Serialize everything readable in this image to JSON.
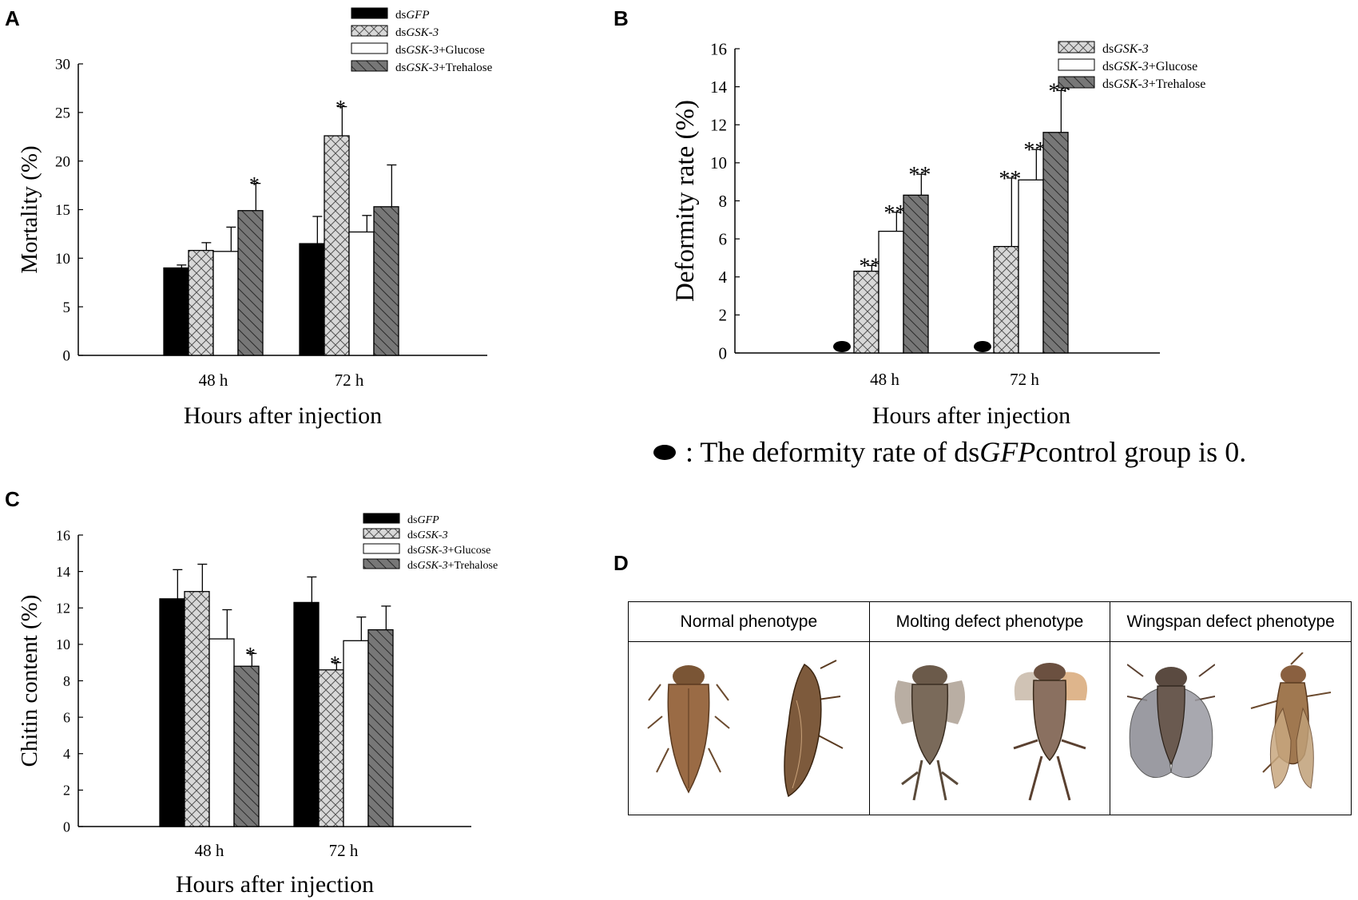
{
  "panels": {
    "A": "A",
    "B": "B",
    "C": "C",
    "D": "D"
  },
  "chart_data": [
    {
      "id": "A",
      "type": "bar",
      "ylabel": "Mortality (%)",
      "xlabel": "Hours after injection",
      "categories": [
        "48 h",
        "72 h"
      ],
      "ylim": [
        0,
        30
      ],
      "yticks": [
        "0",
        "5",
        "10",
        "15",
        "20",
        "25",
        "30"
      ],
      "series": [
        {
          "name": "dsGFP",
          "prefix": "ds",
          "italic": "GFP",
          "suffix": "",
          "pattern": "solid",
          "values": [
            9.0,
            11.5
          ],
          "errors": [
            0.3,
            2.8
          ],
          "sig": [
            "",
            ""
          ]
        },
        {
          "name": "dsGSK-3",
          "prefix": "ds",
          "italic": "GSK-3",
          "suffix": "",
          "pattern": "cross",
          "values": [
            10.8,
            22.6
          ],
          "errors": [
            0.8,
            3.0
          ],
          "sig": [
            "",
            "*"
          ]
        },
        {
          "name": "dsGSK-3+Glucose",
          "prefix": "ds",
          "italic": "GSK-3",
          "suffix": "+Glucose",
          "pattern": "white",
          "values": [
            10.7,
            12.7
          ],
          "errors": [
            2.5,
            1.7
          ],
          "sig": [
            "",
            ""
          ]
        },
        {
          "name": "dsGSK-3+Trehalose",
          "prefix": "ds",
          "italic": "GSK-3",
          "suffix": "+Trehalose",
          "pattern": "diag",
          "values": [
            14.9,
            15.3
          ],
          "errors": [
            2.8,
            4.3
          ],
          "sig": [
            "*",
            ""
          ]
        }
      ]
    },
    {
      "id": "B",
      "type": "bar",
      "ylabel": "Deformity rate (%)",
      "xlabel": "Hours after injection",
      "categories": [
        "48 h",
        "72 h"
      ],
      "ylim": [
        0,
        16
      ],
      "yticks": [
        "0",
        "2",
        "4",
        "6",
        "8",
        "10",
        "12",
        "14",
        "16"
      ],
      "series": [
        {
          "name": "dsGSK-3",
          "prefix": "ds",
          "italic": "GSK-3",
          "suffix": "",
          "pattern": "cross",
          "values": [
            4.3,
            5.6
          ],
          "errors": [
            0.3,
            3.6
          ],
          "sig": [
            "**",
            "**"
          ]
        },
        {
          "name": "dsGSK-3+Glucose",
          "prefix": "ds",
          "italic": "GSK-3",
          "suffix": "+Glucose",
          "pattern": "white",
          "values": [
            6.4,
            9.1
          ],
          "errors": [
            1.0,
            1.6
          ],
          "sig": [
            "**",
            "**"
          ]
        },
        {
          "name": "dsGSK-3+Trehalose",
          "prefix": "ds",
          "italic": "GSK-3",
          "suffix": "+Trehalose",
          "pattern": "diag",
          "values": [
            8.3,
            11.6
          ],
          "errors": [
            1.1,
            2.2
          ],
          "sig": [
            "**",
            "**"
          ]
        }
      ],
      "zero_marker_note": {
        "prefix": ": The deformity rate of ds",
        "italic": "GFP",
        "suffix": " control group is 0."
      }
    },
    {
      "id": "C",
      "type": "bar",
      "ylabel": "Chitin content (%)",
      "xlabel": "Hours after injection",
      "categories": [
        "48 h",
        "72 h"
      ],
      "ylim": [
        0,
        16
      ],
      "yticks": [
        "0",
        "2",
        "4",
        "6",
        "8",
        "10",
        "12",
        "14",
        "16"
      ],
      "series": [
        {
          "name": "dsGFP",
          "prefix": "ds",
          "italic": "GFP",
          "suffix": "",
          "pattern": "solid",
          "values": [
            12.5,
            12.3
          ],
          "errors": [
            1.6,
            1.4
          ],
          "sig": [
            "",
            ""
          ]
        },
        {
          "name": "dsGSK-3",
          "prefix": "ds",
          "italic": "GSK-3",
          "suffix": "",
          "pattern": "cross",
          "values": [
            12.9,
            8.6
          ],
          "errors": [
            1.5,
            0.4
          ],
          "sig": [
            "",
            "*"
          ]
        },
        {
          "name": "dsGSK-3+Glucose",
          "prefix": "ds",
          "italic": "GSK-3",
          "suffix": "+Glucose",
          "pattern": "white",
          "values": [
            10.3,
            10.2
          ],
          "errors": [
            1.6,
            1.3
          ],
          "sig": [
            "",
            ""
          ]
        },
        {
          "name": "dsGSK-3+Trehalose",
          "prefix": "ds",
          "italic": "GSK-3",
          "suffix": "+Trehalose",
          "pattern": "diag",
          "values": [
            8.8,
            10.8
          ],
          "errors": [
            0.7,
            1.3
          ],
          "sig": [
            "*",
            ""
          ]
        }
      ]
    }
  ],
  "phenotypes": {
    "headers": [
      "Normal phenotype",
      "Molting defect phenotype",
      "Wingspan defect phenotype"
    ]
  },
  "colors": {
    "solid": "#000000",
    "cross_bg": "#d8d8d8",
    "diag_bg": "#777777",
    "white": "#ffffff"
  }
}
